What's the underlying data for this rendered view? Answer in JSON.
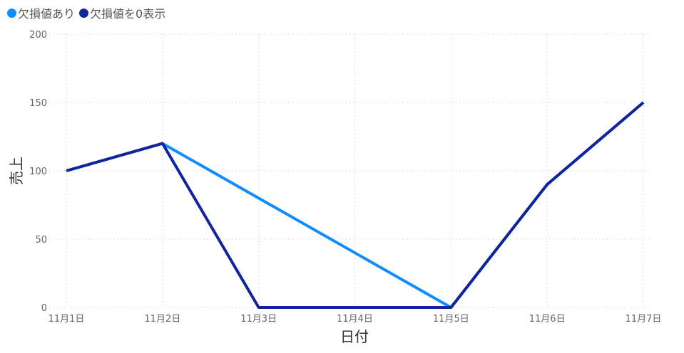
{
  "chart_data": {
    "type": "line",
    "xlabel": "日付",
    "ylabel": "売上",
    "categories": [
      "11月1日",
      "11月2日",
      "11月3日",
      "11月4日",
      "11月5日",
      "11月6日",
      "11月7日"
    ],
    "ylim": [
      0,
      200
    ],
    "yticks": [
      "0",
      "50",
      "100",
      "150",
      "200"
    ],
    "grid": true,
    "legend_position": "top-left",
    "series": [
      {
        "name": "欠損値あり",
        "color": "#118dff",
        "values": [
          100,
          120,
          null,
          null,
          0,
          90,
          150
        ]
      },
      {
        "name": "欠損値を0表示",
        "color": "#12239e",
        "values": [
          100,
          120,
          0,
          0,
          0,
          90,
          150
        ]
      }
    ]
  }
}
